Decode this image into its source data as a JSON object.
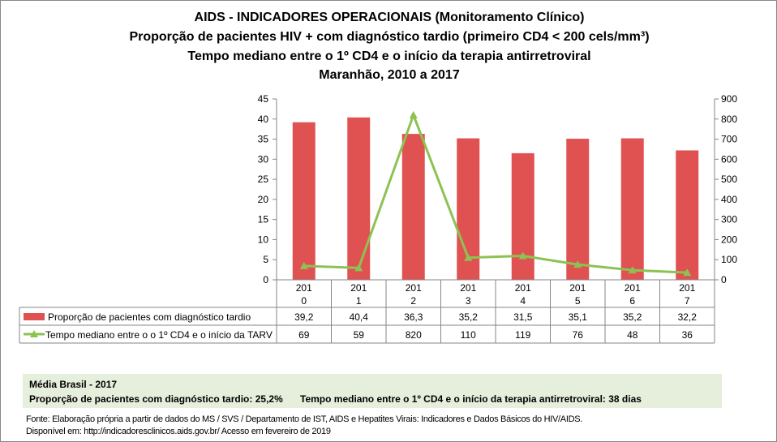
{
  "titles": [
    "AIDS - INDICADORES OPERACIONAIS (Monitoramento Clínico)",
    "Proporção de pacientes HIV + com diagnóstico tardio (primeiro CD4 < 200 cels/mm³)",
    "Tempo mediano entre o 1º CD4 e o início da terapia antirretroviral",
    "Maranhão, 2010 a 2017"
  ],
  "chart_data": {
    "type": "bar+line",
    "categories": [
      "2010",
      "2011",
      "2012",
      "2013",
      "2014",
      "2015",
      "2016",
      "2017"
    ],
    "category_labels": [
      [
        "201",
        "0"
      ],
      [
        "201",
        "1"
      ],
      [
        "201",
        "2"
      ],
      [
        "201",
        "3"
      ],
      [
        "201",
        "4"
      ],
      [
        "201",
        "5"
      ],
      [
        "201",
        "6"
      ],
      [
        "201",
        "7"
      ]
    ],
    "series": [
      {
        "name": "Proporção de pacientes com diagnóstico tardio",
        "type": "bar",
        "axis": "left",
        "values": [
          39.2,
          40.4,
          36.3,
          35.2,
          31.5,
          35.1,
          35.2,
          32.2
        ],
        "labels": [
          "39,2",
          "40,4",
          "36,3",
          "35,2",
          "31,5",
          "35,1",
          "35,2",
          "32,2"
        ],
        "color": "#e05252"
      },
      {
        "name": "Tempo mediano entre o o 1º CD4 e o início da TARV",
        "type": "line",
        "axis": "right",
        "values": [
          69,
          59,
          820,
          110,
          119,
          76,
          48,
          36
        ],
        "labels": [
          "69",
          "59",
          "820",
          "110",
          "119",
          "76",
          "48",
          "36"
        ],
        "color": "#8dc253"
      }
    ],
    "ylim_left": [
      0,
      45
    ],
    "yticks_left": [
      "0",
      "5",
      "10",
      "15",
      "20",
      "25",
      "30",
      "35",
      "40",
      "45"
    ],
    "ylim_right": [
      0,
      900
    ],
    "yticks_right": [
      "0",
      "100",
      "200",
      "300",
      "400",
      "500",
      "600",
      "700",
      "800",
      "900"
    ],
    "grid": false,
    "legend": "data-table"
  },
  "media": {
    "title": "Média Brasil - 2017",
    "prop": "Proporção de pacientes com diagnóstico  tardio: 25,2%",
    "tempo": "Tempo mediano entre o 1º CD4 e o início da terapia antirretroviral: 38 dias"
  },
  "fonte": [
    "Fonte: Elaboração própria a partir de dados do  MS / SVS / Departamento de IST, AIDS e Hepatites Virais: Indicadores e Dados Básicos do HIV/AIDS.",
    "Disponível em: http://indicadoresclinicos.aids.gov.br/ Acesso em fevereiro de 2019"
  ]
}
